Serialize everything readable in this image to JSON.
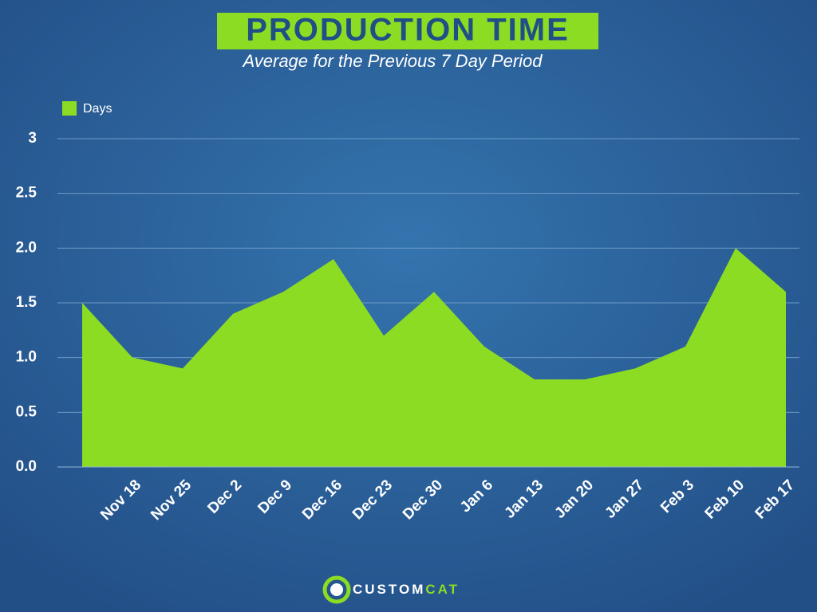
{
  "chart_data": {
    "type": "area",
    "title": "PRODUCTION TIME",
    "subtitle": "Average for the Previous 7 Day Period",
    "categories": [
      null,
      "Nov 18",
      "Nov 25",
      "Dec 2",
      "Dec 9",
      "Dec 16",
      "Dec 23",
      "Dec 30",
      "Jan 6",
      "Jan 13",
      "Jan 20",
      "Jan 27",
      "Feb 3",
      "Feb 10",
      "Feb 17"
    ],
    "series": [
      {
        "name": "Days",
        "color": "#8cdc24",
        "values": [
          1.5,
          1.0,
          0.9,
          1.4,
          1.6,
          1.9,
          1.2,
          1.6,
          1.1,
          0.8,
          0.8,
          0.9,
          1.1,
          2.0,
          1.6
        ]
      }
    ],
    "ylim": [
      0,
      3
    ],
    "yticks": [
      {
        "value": 0,
        "label": "0.0"
      },
      0.5,
      {
        "value": 1,
        "label": "1.0"
      },
      1.5,
      {
        "value": 2,
        "label": "2.0"
      },
      2.5,
      3
    ],
    "grid": true,
    "legend": "top-left"
  },
  "logo": [
    "CUSTOM",
    "CAT"
  ]
}
